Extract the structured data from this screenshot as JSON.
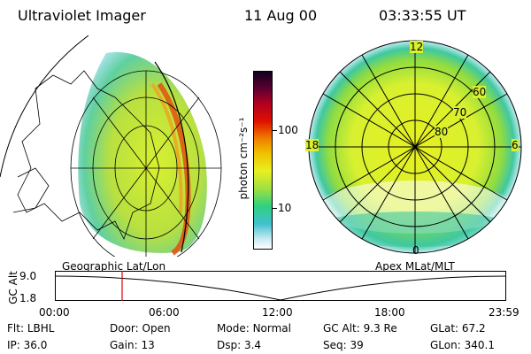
{
  "header": {
    "instrument": "Ultraviolet Imager",
    "date": "11 Aug 00",
    "time": "03:33:55 UT"
  },
  "colorbar": {
    "unit_label": "photon cm⁻²s⁻¹",
    "ticks": [
      "100",
      "10"
    ]
  },
  "polar_plot": {
    "mlt_labels": {
      "top": "12",
      "left": "18",
      "right": "6",
      "bottom": "0"
    },
    "lat_labels": [
      "60",
      "70",
      "80"
    ]
  },
  "panel_captions": {
    "left": "Geographic Lat/Lon",
    "right": "Apex MLat/MLT"
  },
  "altitude_timeline": {
    "axis_label": "GC Alt",
    "y_ticks": [
      "9.0",
      "1.8"
    ],
    "time_ticks": [
      "00:00",
      "06:00",
      "12:00",
      "18:00",
      "23:59"
    ],
    "current_time_fraction": 0.149
  },
  "info": {
    "row1": [
      {
        "key": "Flt:",
        "value": "LBHL"
      },
      {
        "key": "Door:",
        "value": "Open"
      },
      {
        "key": "Mode:",
        "value": "Normal"
      },
      {
        "key": "GC Alt:",
        "value": "9.3 Re"
      },
      {
        "key": "GLat:",
        "value": "67.2"
      }
    ],
    "row2": [
      {
        "key": "IP:",
        "value": "36.0"
      },
      {
        "key": "Gain:",
        "value": "13"
      },
      {
        "key": "Dsp:",
        "value": "3.4"
      },
      {
        "key": "Seq:",
        "value": "39"
      },
      {
        "key": "GLon:",
        "value": "340.1"
      }
    ]
  },
  "colors": {
    "marker": "#e00000",
    "frame": "#000000"
  }
}
